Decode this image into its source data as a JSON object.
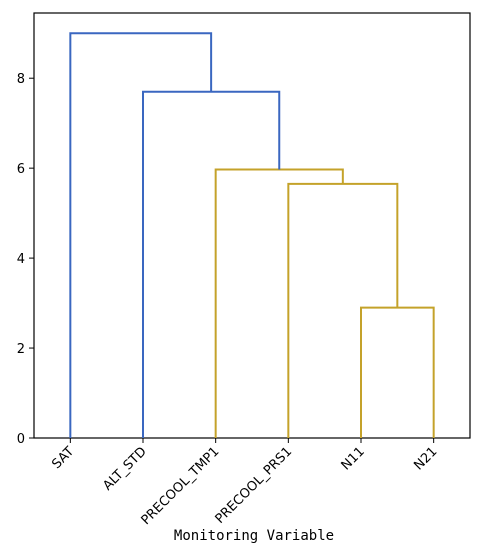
{
  "chart_data": {
    "type": "dendrogram",
    "xlabel": "Monitoring Variable",
    "ylabel": "",
    "ylim": [
      0,
      9.45
    ],
    "yticks": [
      0,
      2,
      4,
      6,
      8
    ],
    "leaves": [
      "SAT",
      "ALT_STD",
      "PRECOOL_TMP1",
      "PRECOOL_PRS1",
      "N11",
      "N21"
    ],
    "merges": [
      {
        "id": "c1",
        "left": "N11",
        "right": "N21",
        "height": 2.9,
        "color": "#c4a22a"
      },
      {
        "id": "c2",
        "left": "PRECOOL_PRS1",
        "right": "c1",
        "height": 5.65,
        "color": "#c4a22a"
      },
      {
        "id": "c3",
        "left": "PRECOOL_TMP1",
        "right": "c2",
        "height": 5.97,
        "color": "#c4a22a"
      },
      {
        "id": "c4",
        "left": "ALT_STD",
        "right": "c3",
        "height": 7.7,
        "color": "#3a67c0"
      },
      {
        "id": "c5",
        "left": "SAT",
        "right": "c4",
        "height": 9.0,
        "color": "#3a67c0"
      }
    ]
  }
}
